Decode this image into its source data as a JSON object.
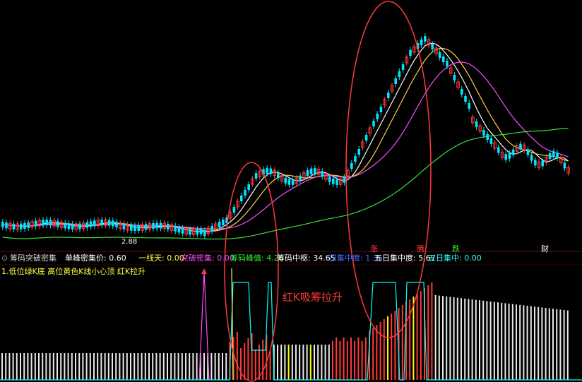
{
  "colors": {
    "background": "#000000",
    "up": "#ff3a3a",
    "down": "#00e5ff",
    "ma5": "#ffffff",
    "ma10": "#ffd24a",
    "ma20": "#ff4aff",
    "ma60": "#3ae03a",
    "ellipse": "#ff3a3a",
    "vol_white": "#e8e8e8",
    "vol_red": "#ff3a3a",
    "vol_yellow": "#ffff00",
    "indicator_line": "#00ffff"
  },
  "main_chart": {
    "price_label": "2.88",
    "markers": [
      "涨",
      "腾",
      "跌",
      "财"
    ]
  },
  "indicator_bar": {
    "title": "筹码突破密集",
    "single_peak_label": "单峰密集价: 0.60",
    "line_sky_label": "一线天: 0.00",
    "breakout_label": "突破密集: 0.00",
    "chip_peak_label": "筹码峰值: 4.26",
    "chip_center_label": "筹码中枢: 34.65",
    "daily_focus_label": "日集中度: 1.36",
    "five_day_focus_label": "五日集中度: 5.67",
    "five_day_center_label": "五日集中: 0.00"
  },
  "legend_line": {
    "text": "1.低位绿K底 高位黄色K线小心顶 红K拉升"
  },
  "annotation": {
    "text": "红K吸筹拉升"
  },
  "icons": {
    "settings": "circle-down-icon"
  }
}
